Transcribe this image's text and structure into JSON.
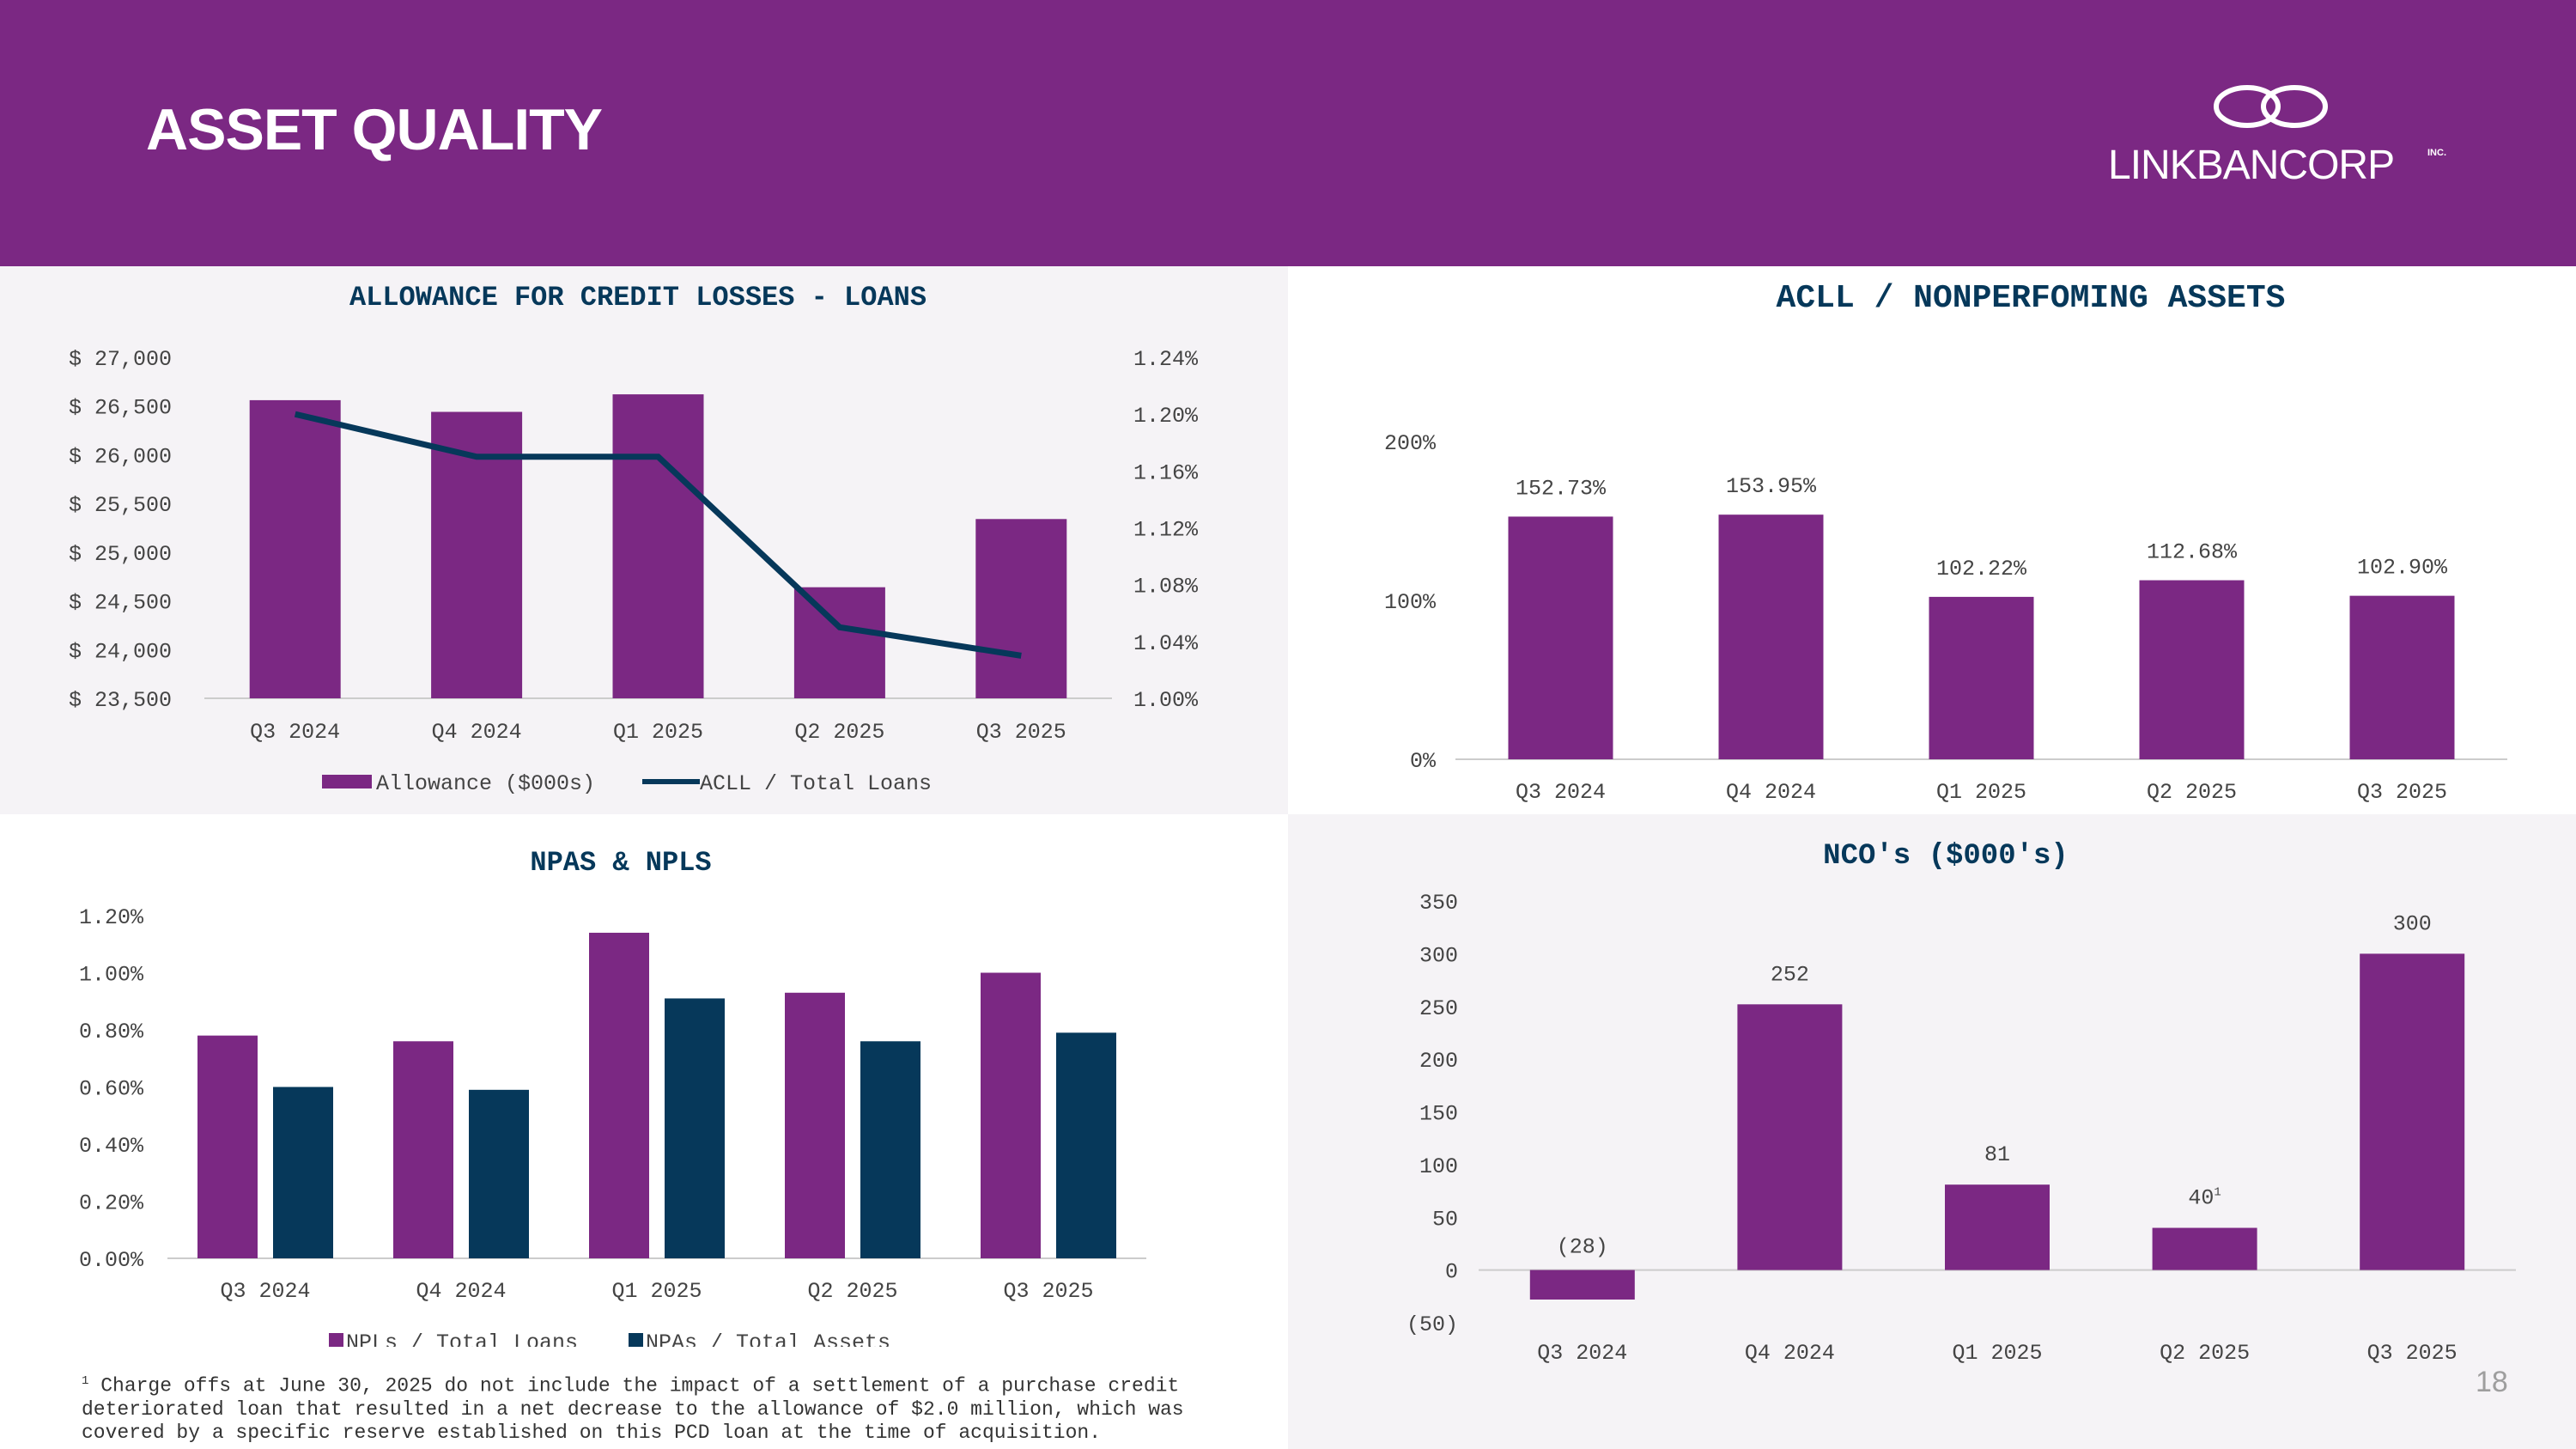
{
  "header": {
    "title": "ASSET QUALITY",
    "logo_text": "LINKBANCORP",
    "logo_suffix": "INC."
  },
  "colors": {
    "purple": "#7b2883",
    "navy": "#06385a",
    "panel_bg": "#f5f3f6"
  },
  "page_number": "18",
  "footnote": {
    "marker": "1",
    "text": "Charge offs at June 30, 2025 do not include the impact of a settlement of a purchase credit\ndeteriorated loan that resulted in a net decrease to the allowance of $2.0 million, which was\ncovered by a specific reserve established on this PCD loan at the time of acquisition."
  },
  "chart_data": [
    {
      "id": "allowance",
      "type": "bar",
      "title": "ALLOWANCE FOR CREDIT LOSSES - LOANS",
      "categories": [
        "Q3 2024",
        "Q4 2024",
        "Q1 2025",
        "Q2 2025",
        "Q3 2025"
      ],
      "series": [
        {
          "name": "Allowance ($000s)",
          "type": "bar",
          "axis": "left",
          "values": [
            26560,
            26440,
            26620,
            24640,
            25340
          ]
        },
        {
          "name": "ACLL / Total Loans",
          "type": "line",
          "axis": "right",
          "values": [
            1.2,
            1.17,
            1.17,
            1.05,
            1.03
          ]
        }
      ],
      "y_left": {
        "ylim": [
          23500,
          27000
        ],
        "ticks": [
          "$ 23,500",
          "$ 24,000",
          "$ 24,500",
          "$ 25,000",
          "$ 25,500",
          "$ 26,000",
          "$ 26,500",
          "$ 27,000"
        ]
      },
      "y_right": {
        "ylim": [
          1.0,
          1.24
        ],
        "ticks": [
          "1.00%",
          "1.04%",
          "1.08%",
          "1.12%",
          "1.16%",
          "1.20%",
          "1.24%"
        ]
      },
      "legend": [
        "Allowance ($000s)",
        "ACLL / Total Loans"
      ]
    },
    {
      "id": "acll_npa",
      "type": "bar",
      "title": "ACLL / NONPERFOMING ASSETS",
      "categories": [
        "Q3 2024",
        "Q4 2024",
        "Q1 2025",
        "Q2 2025",
        "Q3 2025"
      ],
      "values": [
        152.73,
        153.95,
        102.22,
        112.68,
        102.9
      ],
      "data_labels": [
        "152.73%",
        "153.95%",
        "102.22%",
        "112.68%",
        "102.90%"
      ],
      "ylim": [
        0,
        200
      ],
      "ticks": [
        "0%",
        "100%",
        "200%"
      ]
    },
    {
      "id": "npas_npls",
      "type": "bar",
      "title": "NPAS & NPLS",
      "categories": [
        "Q3 2024",
        "Q4 2024",
        "Q1 2025",
        "Q2 2025",
        "Q3 2025"
      ],
      "series": [
        {
          "name": "NPLs / Total Loans",
          "values": [
            0.78,
            0.76,
            1.14,
            0.93,
            1.0
          ]
        },
        {
          "name": "NPAs / Total Assets",
          "values": [
            0.6,
            0.59,
            0.91,
            0.76,
            0.79
          ]
        }
      ],
      "ylim": [
        0,
        1.2
      ],
      "ticks": [
        "0.00%",
        "0.20%",
        "0.40%",
        "0.60%",
        "0.80%",
        "1.00%",
        "1.20%"
      ],
      "legend": [
        "NPLs / Total Loans",
        "NPAs / Total Assets"
      ]
    },
    {
      "id": "nco",
      "type": "bar",
      "title": "NCO's  ($000's)",
      "categories": [
        "Q3 2024",
        "Q4 2024",
        "Q1 2025",
        "Q2 2025",
        "Q3 2025"
      ],
      "values": [
        -28,
        252,
        81,
        40,
        300
      ],
      "data_labels": [
        "(28)",
        "252",
        "81",
        "40",
        "300"
      ],
      "label_superscripts": [
        "",
        "",
        "",
        "1",
        ""
      ],
      "ylim": [
        -50,
        350
      ],
      "ticks": [
        "(50)",
        "0",
        "50",
        "100",
        "150",
        "200",
        "250",
        "300",
        "350"
      ]
    }
  ]
}
